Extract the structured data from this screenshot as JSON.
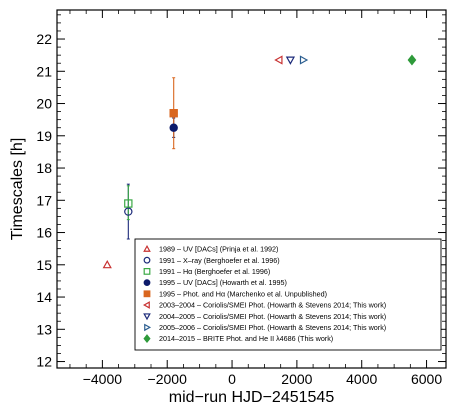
{
  "chart_data": {
    "type": "scatter",
    "xlabel": "mid−run HJD−2451545",
    "ylabel": "Timescales [h]",
    "xlim": [
      -5400,
      6600
    ],
    "ylim": [
      11.8,
      22.9
    ],
    "x_ticks": [
      -4000,
      -2000,
      0,
      2000,
      4000,
      6000
    ],
    "x_tick_labels": [
      "−4000",
      "−2000",
      "0",
      "2000",
      "4000",
      "6000"
    ],
    "y_ticks": [
      12,
      13,
      14,
      15,
      16,
      17,
      18,
      19,
      20,
      21,
      22
    ],
    "y_tick_labels": [
      "12",
      "13",
      "14",
      "15",
      "16",
      "17",
      "18",
      "19",
      "20",
      "21",
      "22"
    ],
    "grid": false,
    "legend_position": "bottom-right",
    "series": [
      {
        "name": "1989 – UV [DACs] (Prinja et al. 1992)",
        "marker": "triangle-up",
        "filled": false,
        "color": "#c83232",
        "points": [
          {
            "x": -3850,
            "y": 15.0
          }
        ]
      },
      {
        "name": "1991 – X–ray (Berghoefer et al. 1996)",
        "marker": "circle",
        "filled": false,
        "color": "#1c2a7a",
        "points": [
          {
            "x": -3200,
            "y": 16.65,
            "err_low": 0.85,
            "err_high": 0.85
          }
        ]
      },
      {
        "name": "1991 –   Hα   (Berghoefer et al. 1996)",
        "marker": "square",
        "filled": false,
        "color": "#3aa845",
        "points": [
          {
            "x": -3200,
            "y": 16.9,
            "err_low": 0.5,
            "err_high": 0.55
          }
        ]
      },
      {
        "name": "1995 – UV [DACs] (Howarth et al. 1995)",
        "marker": "circle",
        "filled": true,
        "color": "#0d1b6b",
        "points": [
          {
            "x": -1800,
            "y": 19.25,
            "err_low": 0.3,
            "err_high": 0.3
          }
        ]
      },
      {
        "name": "1995 – Phot. and Hα (Marchenko et al. Unpublished)",
        "marker": "square",
        "filled": true,
        "color": "#d9661f",
        "points": [
          {
            "x": -1800,
            "y": 19.7,
            "err_low": 1.1,
            "err_high": 1.1
          }
        ]
      },
      {
        "name": "2003–2004 – Coriolis/SMEI Phot. (Howarth & Stevens 2014; This work)",
        "marker": "triangle-left",
        "filled": false,
        "color": "#c83232",
        "points": [
          {
            "x": 1450,
            "y": 21.35
          }
        ]
      },
      {
        "name": "2004–2005 – Coriolis/SMEI Phot. (Howarth & Stevens 2014; This work)",
        "marker": "triangle-down",
        "filled": false,
        "color": "#1c2a7a",
        "points": [
          {
            "x": 1800,
            "y": 21.35
          }
        ]
      },
      {
        "name": "2005–2006 – Coriolis/SMEI Phot. (Howarth & Stevens 2014; This work)",
        "marker": "triangle-right",
        "filled": false,
        "color": "#2a5d8f",
        "points": [
          {
            "x": 2200,
            "y": 21.35
          }
        ]
      },
      {
        "name": "2014–2015 – BRITE Phot. and He II λ4686 (This work)",
        "marker": "diamond",
        "filled": true,
        "color": "#2e9a3a",
        "points": [
          {
            "x": 5550,
            "y": 21.35
          }
        ]
      }
    ]
  }
}
